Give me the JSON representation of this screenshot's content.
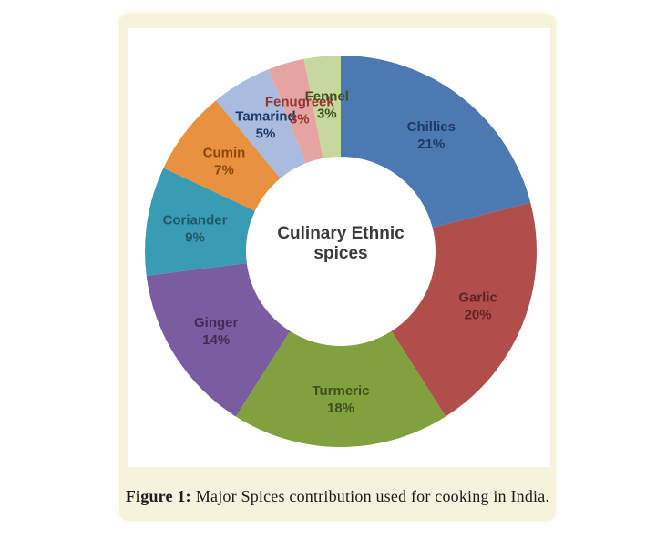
{
  "figure": {
    "caption_prefix": "Figure 1:",
    "caption_text": "Major Spices contribution used for cooking in India."
  },
  "chart_data": {
    "type": "pie",
    "subtype": "donut",
    "title": "Culinary Ethnic spices",
    "center_label_lines": [
      "Culinary Ethnic",
      "spices"
    ],
    "categories": [
      "Chillies",
      "Garlic",
      "Turmeric",
      "Ginger",
      "Coriander",
      "Cumin",
      "Tamarind",
      "Fenugreek",
      "Fennel"
    ],
    "values": [
      21,
      20,
      18,
      14,
      9,
      7,
      5,
      3,
      3
    ],
    "unit": "%",
    "label_format": "name and percent",
    "start_angle_deg": 0,
    "direction": "clockwise",
    "inner_radius_ratio": 0.485,
    "legend": "none",
    "slice_colors": [
      "#4C79B2",
      "#B04E4B",
      "#81A03E",
      "#7A5DA1",
      "#3A9CB4",
      "#E8913F",
      "#A9BBDE",
      "#E5A4A2",
      "#C5D89E"
    ],
    "slice_label_colors": [
      "#1E3A63",
      "#5F2322",
      "#404F1F",
      "#3E2E52",
      "#1E5866",
      "#8A4708",
      "#1E3A63",
      "#943634",
      "#404F1F"
    ],
    "caption": "Figure 1: Major Spices contribution used for cooking in India."
  }
}
